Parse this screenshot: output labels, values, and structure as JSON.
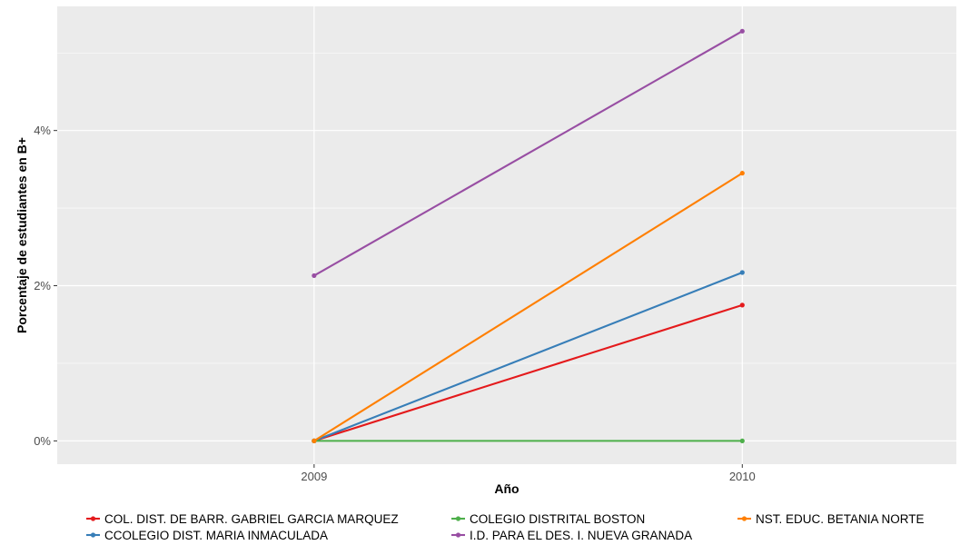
{
  "chart_data": {
    "type": "line",
    "xlabel": "Año",
    "ylabel": "Porcentaje de estudiantes en B+",
    "x": [
      2009,
      2010
    ],
    "x_tick_labels": [
      "2009",
      "2010"
    ],
    "xlim": [
      2008.4,
      2010.5
    ],
    "ylim": [
      -0.3,
      5.6
    ],
    "y_ticks": [
      0,
      2,
      4
    ],
    "y_tick_labels": [
      "0%",
      "2%",
      "4%"
    ],
    "grid": true,
    "legend_position": "bottom",
    "series": [
      {
        "name": "COL. DIST. DE BARR. GABRIEL GARCIA MARQUEZ",
        "color": "#e41a1c",
        "values": [
          0,
          1.75
        ]
      },
      {
        "name": "CCOLEGIO DIST. MARIA INMACULADA",
        "color": "#377eb8",
        "values": [
          0,
          2.17
        ]
      },
      {
        "name": "COLEGIO DISTRITAL BOSTON",
        "color": "#4daf4a",
        "values": [
          0,
          0
        ]
      },
      {
        "name": "I.D. PARA EL DES. I. NUEVA GRANADA",
        "color": "#984ea3",
        "values": [
          2.13,
          5.28
        ]
      },
      {
        "name": "NST. EDUC. BETANIA NORTE",
        "color": "#ff7f00",
        "values": [
          0,
          3.45
        ]
      }
    ]
  }
}
